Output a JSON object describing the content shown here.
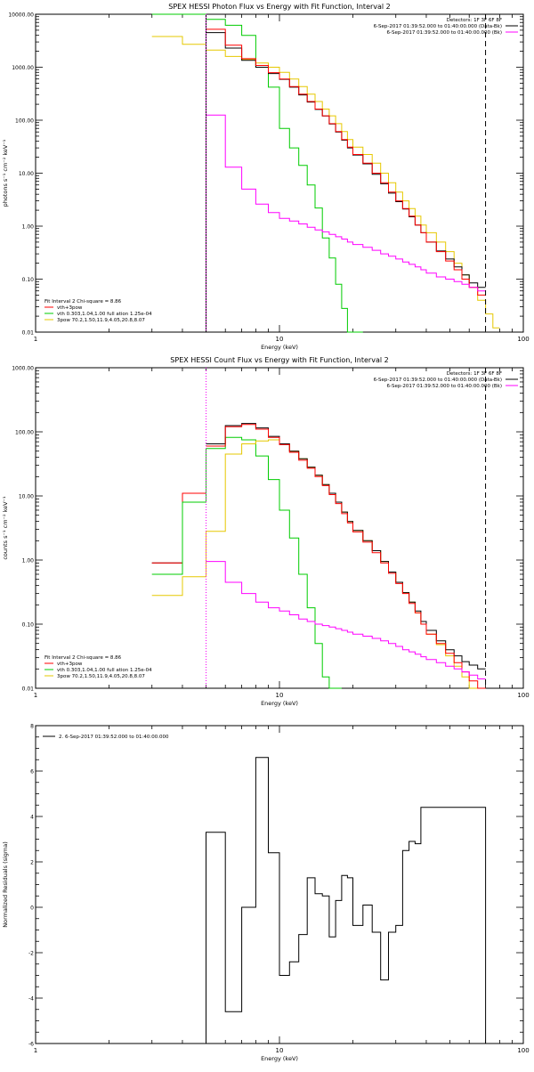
{
  "chart_data": [
    {
      "id": "photon",
      "type": "line",
      "title": "SPEX HESSI Photon Flux vs Energy with Fit Function, Interval 2",
      "xlabel": "Energy (keV)",
      "ylabel": "photons s⁻¹ cm⁻² keV⁻¹",
      "xscale": "log",
      "yscale": "log",
      "xlim": [
        1,
        100
      ],
      "ylim": [
        0.01,
        10000
      ],
      "x_ticks": [
        "1",
        "10",
        "100"
      ],
      "y_ticks": [
        "0.01",
        "0.10",
        "1.00",
        "10.00",
        "100.00",
        "1000.00",
        "10000.00"
      ],
      "header": [
        {
          "text": "Detectors: 1F 3F 6F 8F",
          "color": ""
        },
        {
          "text": "6-Sep-2017 01:39:52.000 to 01:40:00.000 (Data-Bk)",
          "color": "#000000"
        },
        {
          "text": "6-Sep-2017 01:39:52.000 to 01:40:00.000 (Bk)",
          "color": "#ff00ff"
        }
      ],
      "fit_lines": [
        {
          "text": "Fit Interval  2   Chi-square = 8.86",
          "color": ""
        },
        {
          "text": "vth+3pow",
          "color": "#ff0000"
        },
        {
          "text": "vth 0.303,1.04,1.00  full ation 1.25e-04",
          "color": "#00cc00"
        },
        {
          "text": "3pow 70.2,1.50,11.9,4.05,20.8,8.07",
          "color": "#e6c800"
        }
      ],
      "vlines": [
        {
          "x": 5,
          "style": "solid",
          "color": "#000000"
        },
        {
          "x": 5,
          "style": "dotted",
          "color": "#ff00ff"
        },
        {
          "x": 70,
          "style": "dashed",
          "color": "#000000"
        }
      ],
      "edges": [
        5,
        6,
        7,
        8,
        9,
        10,
        11,
        12,
        13,
        14,
        15,
        16,
        17,
        18,
        19,
        20,
        22,
        24,
        26,
        28,
        30,
        32,
        34,
        36,
        38,
        40,
        44,
        48,
        52,
        56,
        60,
        65,
        70
      ],
      "series": [
        {
          "color": "#000000",
          "values": [
            4500,
            2300,
            1350,
            1000,
            760,
            590,
            420,
            300,
            220,
            160,
            120,
            85,
            60,
            42,
            30,
            22,
            15,
            9.5,
            6.3,
            4.2,
            2.9,
            2.1,
            1.5,
            1.05,
            0.75,
            0.5,
            0.34,
            0.24,
            0.17,
            0.12,
            0.085,
            0.07
          ]
        },
        {
          "color": "#ff0000",
          "values": [
            5200,
            2600,
            1450,
            1080,
            790,
            600,
            430,
            310,
            225,
            162,
            121,
            86,
            61,
            43,
            31,
            22.5,
            15.5,
            10,
            6.6,
            4.4,
            3.0,
            2.15,
            1.55,
            1.05,
            0.75,
            0.5,
            0.33,
            0.22,
            0.15,
            0.1,
            0.07,
            0.05
          ]
        },
        {
          "color": "#ff00ff",
          "values": [
            125,
            13,
            5.0,
            2.6,
            1.8,
            1.4,
            1.25,
            1.1,
            0.95,
            0.85,
            0.78,
            0.7,
            0.63,
            0.57,
            0.5,
            0.45,
            0.4,
            0.35,
            0.3,
            0.27,
            0.24,
            0.21,
            0.19,
            0.17,
            0.15,
            0.13,
            0.11,
            0.1,
            0.09,
            0.08,
            0.07,
            0.06
          ]
        }
      ],
      "steps": [
        {
          "color": "#00cc00",
          "edges": [
            3,
            4,
            5,
            6,
            7,
            8,
            9,
            10,
            11,
            12,
            13,
            14,
            15,
            16,
            17,
            18,
            19,
            20,
            22
          ],
          "values": [
            12000,
            10000,
            8000,
            6200,
            4000,
            1000,
            420,
            70,
            30,
            14,
            6,
            2.2,
            0.6,
            0.25,
            0.08,
            0.028,
            0.008,
            0.003
          ]
        },
        {
          "color": "#e6c800",
          "edges": [
            3,
            4,
            5,
            6,
            7,
            8,
            9,
            10,
            11,
            12,
            13,
            14,
            15,
            16,
            17,
            18,
            19,
            20,
            22,
            24,
            26,
            28,
            30,
            32,
            34,
            36,
            38,
            40,
            44,
            48,
            52,
            56,
            60,
            65,
            70,
            75,
            80
          ],
          "values": [
            3800,
            2700,
            2100,
            1600,
            1400,
            1200,
            1000,
            800,
            600,
            430,
            310,
            225,
            162,
            121,
            86,
            61,
            43,
            31,
            22.5,
            15.5,
            10,
            6.6,
            4.4,
            3.0,
            2.15,
            1.55,
            1.05,
            0.75,
            0.5,
            0.33,
            0.2,
            0.12,
            0.07,
            0.04,
            0.022,
            0.012
          ]
        }
      ]
    },
    {
      "id": "count",
      "type": "line",
      "title": "SPEX HESSI Count Flux vs Energy with Fit Function, Interval 2",
      "xlabel": "Energy (keV)",
      "ylabel": "counts s⁻¹ cm⁻² keV⁻¹",
      "xscale": "log",
      "yscale": "log",
      "xlim": [
        1,
        100
      ],
      "ylim": [
        0.01,
        1000
      ],
      "x_ticks": [
        "1",
        "10",
        "100"
      ],
      "y_ticks": [
        "0.01",
        "0.10",
        "1.00",
        "10.00",
        "100.00",
        "1000.00"
      ],
      "header": [
        {
          "text": "Detectors: 1F 3F 6F 8F",
          "color": ""
        },
        {
          "text": "6-Sep-2017 01:39:52.000 to 01:40:00.000 (Data-Bk)",
          "color": "#000000"
        },
        {
          "text": "6-Sep-2017 01:39:52.000 to 01:40:00.000 (Bk)",
          "color": "#ff00ff"
        }
      ],
      "fit_lines": [
        {
          "text": "Fit Interval  2   Chi-square = 8.86",
          "color": ""
        },
        {
          "text": "vth+3pow",
          "color": "#ff0000"
        },
        {
          "text": "vth 0.303,1.04,1.00  full ation 1.25e-04",
          "color": "#00cc00"
        },
        {
          "text": "3pow 70.2,1.50,11.9,4.05,20.8,8.07",
          "color": "#e6c800"
        }
      ],
      "vlines": [
        {
          "x": 5,
          "style": "dotted",
          "color": "#000000"
        },
        {
          "x": 5,
          "style": "dotted",
          "color": "#ff00ff"
        },
        {
          "x": 70,
          "style": "dashed",
          "color": "#000000"
        }
      ],
      "edges": [
        5,
        6,
        7,
        8,
        9,
        10,
        11,
        12,
        13,
        14,
        15,
        16,
        17,
        18,
        19,
        20,
        22,
        24,
        26,
        28,
        30,
        32,
        34,
        36,
        38,
        40,
        44,
        48,
        52,
        56,
        60,
        65,
        70
      ],
      "series": [
        {
          "color": "#000000",
          "values": [
            65,
            125,
            135,
            115,
            85,
            65,
            50,
            38,
            28,
            21,
            15,
            11,
            8.0,
            5.6,
            4.0,
            2.9,
            2.0,
            1.4,
            0.95,
            0.65,
            0.45,
            0.31,
            0.22,
            0.16,
            0.11,
            0.08,
            0.055,
            0.04,
            0.032,
            0.026,
            0.023,
            0.02
          ]
        },
        {
          "color": "#ff0000",
          "values": [
            60,
            120,
            130,
            110,
            82,
            63,
            48,
            36,
            27,
            20,
            14.5,
            10.5,
            7.6,
            5.3,
            3.8,
            2.75,
            1.9,
            1.3,
            0.9,
            0.62,
            0.43,
            0.3,
            0.21,
            0.15,
            0.1,
            0.07,
            0.05,
            0.035,
            0.025,
            0.018,
            0.013,
            0.009
          ]
        },
        {
          "color": "#ff00ff",
          "values": [
            0.95,
            0.45,
            0.3,
            0.22,
            0.18,
            0.16,
            0.14,
            0.12,
            0.11,
            0.1,
            0.095,
            0.09,
            0.085,
            0.08,
            0.075,
            0.07,
            0.065,
            0.06,
            0.055,
            0.05,
            0.045,
            0.04,
            0.037,
            0.034,
            0.031,
            0.028,
            0.025,
            0.022,
            0.02,
            0.018,
            0.016,
            0.014
          ]
        }
      ],
      "steps": [
        {
          "color": "#000000",
          "edges": [
            3,
            4,
            5
          ],
          "values": [
            0.9,
            11
          ]
        },
        {
          "color": "#ff0000",
          "edges": [
            3,
            4,
            5
          ],
          "values": [
            0.9,
            11
          ]
        },
        {
          "color": "#00cc00",
          "edges": [
            3,
            4,
            5,
            6,
            7,
            8,
            9,
            10,
            11,
            12,
            13,
            14,
            15,
            16,
            17,
            18
          ],
          "values": [
            0.6,
            8,
            55,
            82,
            75,
            42,
            18,
            6,
            2.2,
            0.6,
            0.18,
            0.05,
            0.015,
            0.004,
            0.001
          ]
        },
        {
          "color": "#e6c800",
          "edges": [
            3,
            4,
            5,
            6,
            7,
            8,
            9,
            10,
            11,
            12,
            13,
            14,
            15,
            16,
            17,
            18,
            19,
            20,
            22,
            24,
            26,
            28,
            30,
            32,
            34,
            36,
            38,
            40,
            44,
            48,
            52,
            56,
            60,
            65,
            70
          ],
          "values": [
            0.28,
            0.55,
            2.8,
            45,
            65,
            72,
            75,
            65,
            50,
            38,
            28,
            21,
            15,
            11,
            8.0,
            5.6,
            4.0,
            2.9,
            2.0,
            1.4,
            0.95,
            0.65,
            0.45,
            0.31,
            0.22,
            0.15,
            0.1,
            0.07,
            0.048,
            0.032,
            0.022,
            0.015,
            0.01,
            0.006
          ]
        }
      ]
    },
    {
      "id": "resid",
      "type": "line",
      "title": "",
      "xlabel": "Energy (keV)",
      "ylabel": "Normalized Residuals (sigma)",
      "xscale": "log",
      "yscale": "linear",
      "xlim": [
        1,
        100
      ],
      "ylim": [
        -6,
        8
      ],
      "x_ticks": [
        "1",
        "10",
        "100"
      ],
      "y_ticks": [
        "-6",
        "-4",
        "-2",
        "0",
        "2",
        "4",
        "6",
        "8"
      ],
      "legend": "2.  6-Sep-2017 01:39:52.000 to 01:40:00.000",
      "edges": [
        5,
        6,
        7,
        8,
        9,
        10,
        11,
        12,
        13,
        14,
        15,
        16,
        17,
        18,
        19,
        20,
        22,
        24,
        26,
        28,
        30,
        32,
        34,
        36,
        38,
        40,
        44,
        48,
        52,
        56,
        60,
        65,
        70
      ],
      "values": [
        3.3,
        -4.6,
        0.0,
        6.6,
        2.4,
        -3.0,
        -2.4,
        -1.2,
        1.3,
        0.6,
        0.5,
        -1.3,
        0.3,
        1.4,
        1.3,
        -0.8,
        0.1,
        -1.1,
        -3.2,
        -1.1,
        -0.8,
        2.5,
        2.9,
        2.8,
        4.4,
        4.4,
        4.4,
        4.4,
        4.4,
        4.4,
        4.4,
        4.4
      ]
    }
  ]
}
